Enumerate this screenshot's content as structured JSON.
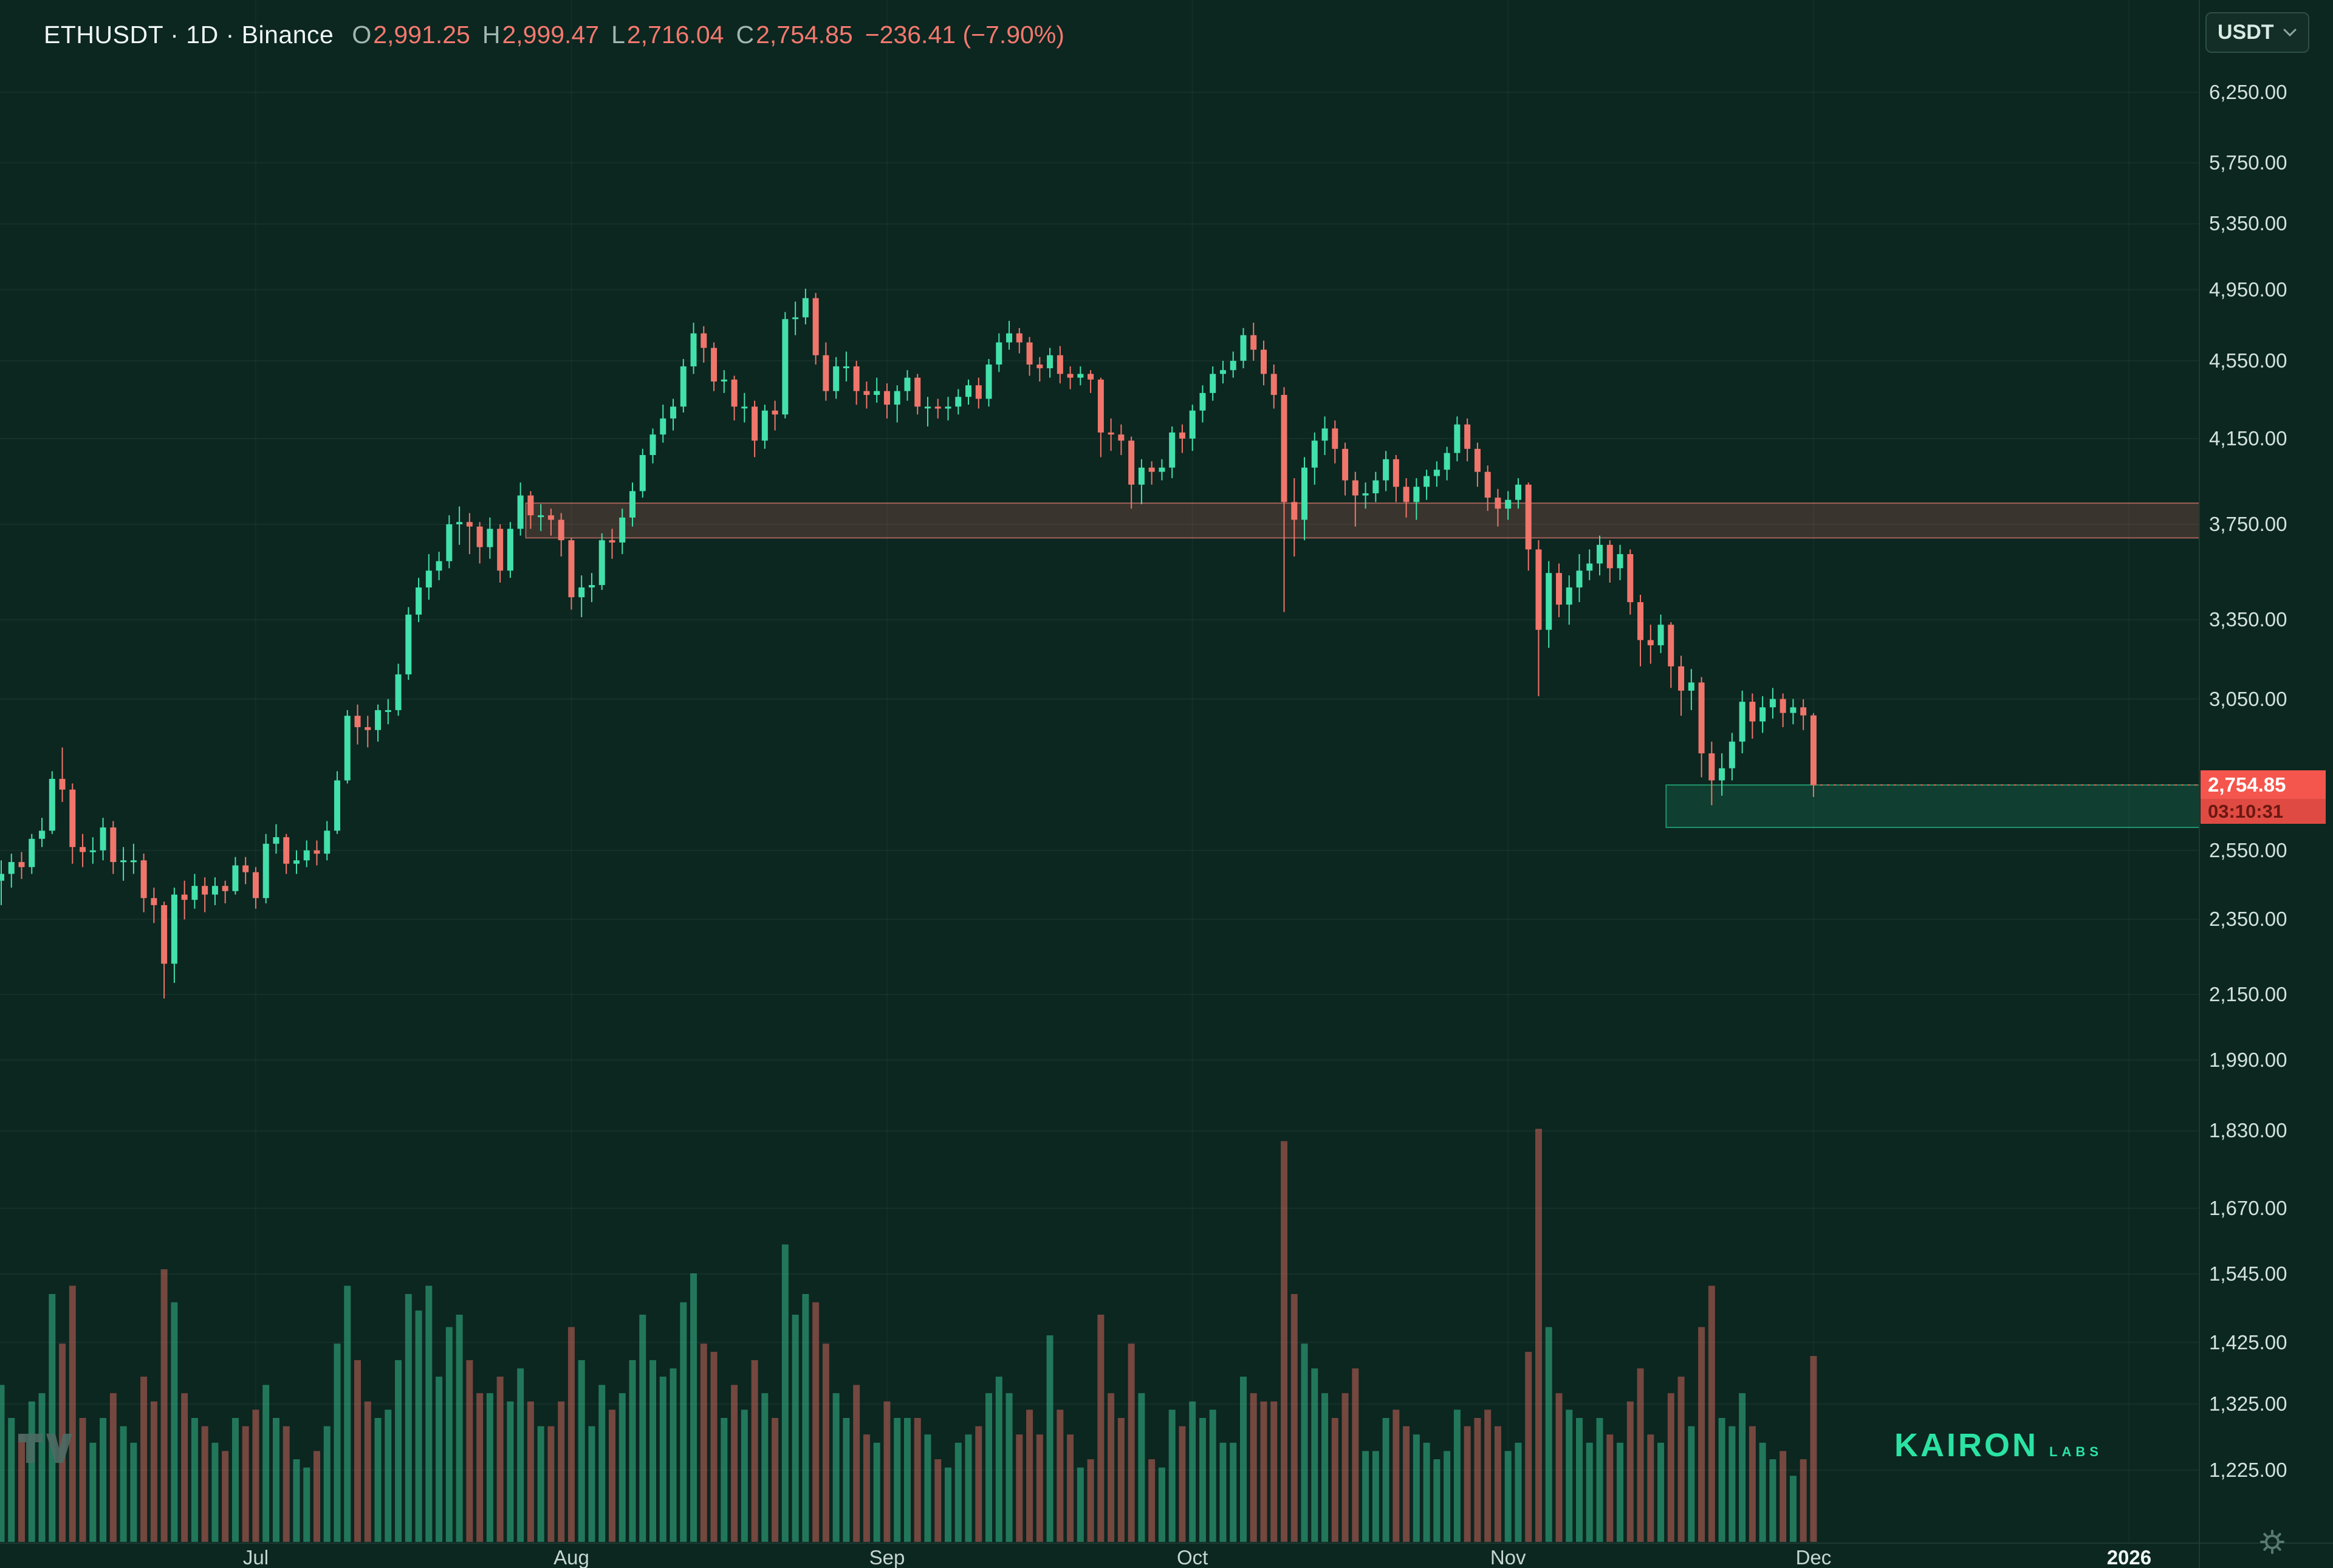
{
  "toolbar": {
    "symbol_text": "ETHUSDT · 1D · Binance",
    "ohlc": {
      "o_label": "O",
      "o": "2,991.25",
      "h_label": "H",
      "h": "2,999.47",
      "l_label": "L",
      "l": "2,716.04",
      "c_label": "C",
      "c": "2,754.85",
      "change": "−236.41 (−7.90%)"
    },
    "currency_button": "USDT"
  },
  "colors": {
    "background": "#0c2620",
    "up": "#42e0aa",
    "down": "#f0756b",
    "vol_up": "rgba(56,199,148,0.5)",
    "vol_down": "rgba(219,104,94,0.5)",
    "last_price_bg": "#f4564d",
    "brand_green": "#2be3a3",
    "axis_text": "#d3e2dc"
  },
  "price_axis": {
    "labels": [
      {
        "text": "6,250.00",
        "value": 6250
      },
      {
        "text": "5,750.00",
        "value": 5750
      },
      {
        "text": "5,350.00",
        "value": 5350
      },
      {
        "text": "4,950.00",
        "value": 4950
      },
      {
        "text": "4,550.00",
        "value": 4550
      },
      {
        "text": "4,150.00",
        "value": 4150
      },
      {
        "text": "3,750.00",
        "value": 3750
      },
      {
        "text": "3,350.00",
        "value": 3350
      },
      {
        "text": "3,050.00",
        "value": 3050
      },
      {
        "text": "2,550.00",
        "value": 2550
      },
      {
        "text": "2,350.00",
        "value": 2350
      },
      {
        "text": "2,150.00",
        "value": 2150
      },
      {
        "text": "1,990.00",
        "value": 1990
      },
      {
        "text": "1,830.00",
        "value": 1830
      },
      {
        "text": "1,670.00",
        "value": 1670
      },
      {
        "text": "1,545.00",
        "value": 1545
      },
      {
        "text": "1,425.00",
        "value": 1425
      },
      {
        "text": "1,325.00",
        "value": 1325
      },
      {
        "text": "1,225.00",
        "value": 1225
      }
    ],
    "last_price": {
      "text": "2,754.85",
      "countdown": "03:10:31",
      "value": 2754.85
    }
  },
  "time_axis": {
    "labels": [
      {
        "text": "Jul",
        "index": 25
      },
      {
        "text": "Aug",
        "index": 56
      },
      {
        "text": "Sep",
        "index": 87
      },
      {
        "text": "Oct",
        "index": 117
      },
      {
        "text": "Nov",
        "index": 148
      },
      {
        "text": "Dec",
        "index": 178
      },
      {
        "text": "2026",
        "index": 209,
        "strong": true
      }
    ]
  },
  "watermarks": {
    "brand_word": "KAIRON",
    "brand_suffix": "LABS"
  },
  "chart_data": {
    "type": "candlestick",
    "symbol": "ETHUSDT",
    "interval": "1D",
    "exchange": "Binance",
    "price_scale": "logarithmic",
    "y_axis_ticks": [
      6250,
      5750,
      5350,
      4950,
      4550,
      4150,
      3750,
      3350,
      3050,
      2550,
      2350,
      2150,
      1990,
      1830,
      1670,
      1545,
      1425,
      1325,
      1225
    ],
    "last_candle": {
      "open": 2991.25,
      "high": 2999.47,
      "low": 2716.04,
      "close": 2754.85,
      "change": -236.41,
      "change_pct": -7.9
    },
    "open_rule": "each candle open equals previous close",
    "first_open": 2460,
    "columns": [
      "high",
      "low",
      "close",
      "volume_rel"
    ],
    "month_start_indices": {
      "Jul": 25,
      "Aug": 56,
      "Sep": 87,
      "Oct": 117,
      "Nov": 148,
      "Dec": 178,
      "2026": 209
    },
    "candles": [
      [
        2520,
        2390,
        2480,
        0.38
      ],
      [
        2540,
        2440,
        2515,
        0.3
      ],
      [
        2545,
        2465,
        2500,
        0.26
      ],
      [
        2600,
        2480,
        2585,
        0.34
      ],
      [
        2650,
        2560,
        2610,
        0.36
      ],
      [
        2800,
        2600,
        2775,
        0.6
      ],
      [
        2880,
        2700,
        2740,
        0.48
      ],
      [
        2760,
        2510,
        2560,
        0.62
      ],
      [
        2600,
        2500,
        2545,
        0.3
      ],
      [
        2590,
        2510,
        2550,
        0.24
      ],
      [
        2650,
        2520,
        2620,
        0.3
      ],
      [
        2640,
        2480,
        2515,
        0.36
      ],
      [
        2560,
        2460,
        2520,
        0.28
      ],
      [
        2570,
        2480,
        2520,
        0.24
      ],
      [
        2540,
        2370,
        2410,
        0.4
      ],
      [
        2440,
        2340,
        2390,
        0.34
      ],
      [
        2400,
        2140,
        2230,
        0.66
      ],
      [
        2440,
        2180,
        2420,
        0.58
      ],
      [
        2460,
        2350,
        2405,
        0.36
      ],
      [
        2480,
        2380,
        2445,
        0.3
      ],
      [
        2470,
        2370,
        2420,
        0.28
      ],
      [
        2470,
        2390,
        2445,
        0.24
      ],
      [
        2460,
        2395,
        2430,
        0.22
      ],
      [
        2530,
        2420,
        2505,
        0.3
      ],
      [
        2530,
        2450,
        2485,
        0.28
      ],
      [
        2500,
        2380,
        2410,
        0.32
      ],
      [
        2600,
        2395,
        2570,
        0.38
      ],
      [
        2630,
        2540,
        2590,
        0.3
      ],
      [
        2600,
        2480,
        2510,
        0.28
      ],
      [
        2550,
        2480,
        2520,
        0.2
      ],
      [
        2580,
        2500,
        2550,
        0.18
      ],
      [
        2580,
        2505,
        2540,
        0.22
      ],
      [
        2640,
        2520,
        2610,
        0.28
      ],
      [
        2800,
        2600,
        2770,
        0.48
      ],
      [
        3010,
        2760,
        2990,
        0.62
      ],
      [
        3030,
        2890,
        2950,
        0.44
      ],
      [
        2990,
        2880,
        2940,
        0.34
      ],
      [
        3030,
        2900,
        3010,
        0.3
      ],
      [
        3050,
        2960,
        3010,
        0.32
      ],
      [
        3180,
        2990,
        3140,
        0.44
      ],
      [
        3400,
        3120,
        3370,
        0.6
      ],
      [
        3520,
        3340,
        3480,
        0.56
      ],
      [
        3620,
        3430,
        3550,
        0.62
      ],
      [
        3630,
        3510,
        3590,
        0.4
      ],
      [
        3790,
        3560,
        3750,
        0.52
      ],
      [
        3830,
        3660,
        3760,
        0.55
      ],
      [
        3800,
        3620,
        3740,
        0.44
      ],
      [
        3760,
        3580,
        3650,
        0.36
      ],
      [
        3780,
        3600,
        3730,
        0.36
      ],
      [
        3750,
        3500,
        3550,
        0.4
      ],
      [
        3760,
        3520,
        3730,
        0.34
      ],
      [
        3940,
        3700,
        3880,
        0.42
      ],
      [
        3900,
        3730,
        3790,
        0.34
      ],
      [
        3840,
        3720,
        3790,
        0.28
      ],
      [
        3820,
        3700,
        3770,
        0.28
      ],
      [
        3800,
        3610,
        3680,
        0.34
      ],
      [
        3690,
        3390,
        3440,
        0.52
      ],
      [
        3530,
        3360,
        3480,
        0.44
      ],
      [
        3540,
        3420,
        3490,
        0.28
      ],
      [
        3710,
        3470,
        3680,
        0.38
      ],
      [
        3730,
        3600,
        3670,
        0.32
      ],
      [
        3820,
        3620,
        3780,
        0.36
      ],
      [
        3940,
        3740,
        3900,
        0.44
      ],
      [
        4100,
        3870,
        4070,
        0.55
      ],
      [
        4200,
        4030,
        4170,
        0.44
      ],
      [
        4320,
        4130,
        4250,
        0.4
      ],
      [
        4350,
        4190,
        4310,
        0.42
      ],
      [
        4560,
        4280,
        4520,
        0.58
      ],
      [
        4760,
        4480,
        4700,
        0.65
      ],
      [
        4740,
        4540,
        4620,
        0.48
      ],
      [
        4650,
        4390,
        4440,
        0.46
      ],
      [
        4500,
        4380,
        4450,
        0.3
      ],
      [
        4470,
        4240,
        4310,
        0.38
      ],
      [
        4380,
        4230,
        4310,
        0.32
      ],
      [
        4340,
        4060,
        4140,
        0.44
      ],
      [
        4320,
        4100,
        4290,
        0.36
      ],
      [
        4340,
        4190,
        4270,
        0.3
      ],
      [
        4820,
        4250,
        4780,
        0.72
      ],
      [
        4880,
        4690,
        4790,
        0.55
      ],
      [
        4955,
        4750,
        4900,
        0.6
      ],
      [
        4930,
        4530,
        4580,
        0.58
      ],
      [
        4650,
        4340,
        4390,
        0.48
      ],
      [
        4570,
        4350,
        4520,
        0.36
      ],
      [
        4600,
        4440,
        4520,
        0.3
      ],
      [
        4550,
        4320,
        4390,
        0.38
      ],
      [
        4440,
        4300,
        4370,
        0.26
      ],
      [
        4460,
        4330,
        4390,
        0.24
      ],
      [
        4430,
        4250,
        4320,
        0.34
      ],
      [
        4420,
        4230,
        4390,
        0.3
      ],
      [
        4500,
        4340,
        4460,
        0.3
      ],
      [
        4480,
        4270,
        4310,
        0.3
      ],
      [
        4360,
        4210,
        4310,
        0.26
      ],
      [
        4350,
        4250,
        4300,
        0.2
      ],
      [
        4360,
        4240,
        4310,
        0.18
      ],
      [
        4400,
        4270,
        4360,
        0.24
      ],
      [
        4450,
        4320,
        4420,
        0.26
      ],
      [
        4460,
        4300,
        4350,
        0.28
      ],
      [
        4560,
        4310,
        4530,
        0.36
      ],
      [
        4700,
        4490,
        4650,
        0.4
      ],
      [
        4770,
        4610,
        4700,
        0.36
      ],
      [
        4730,
        4590,
        4650,
        0.26
      ],
      [
        4680,
        4470,
        4530,
        0.32
      ],
      [
        4570,
        4440,
        4510,
        0.26
      ],
      [
        4620,
        4460,
        4580,
        0.5
      ],
      [
        4630,
        4430,
        4480,
        0.32
      ],
      [
        4520,
        4400,
        4460,
        0.26
      ],
      [
        4520,
        4420,
        4480,
        0.18
      ],
      [
        4500,
        4380,
        4450,
        0.2
      ],
      [
        4460,
        4060,
        4180,
        0.55
      ],
      [
        4250,
        4090,
        4170,
        0.36
      ],
      [
        4220,
        4070,
        4140,
        0.3
      ],
      [
        4160,
        3820,
        3930,
        0.48
      ],
      [
        4050,
        3840,
        4010,
        0.36
      ],
      [
        4040,
        3930,
        3990,
        0.2
      ],
      [
        4050,
        3950,
        4010,
        0.18
      ],
      [
        4210,
        3960,
        4180,
        0.32
      ],
      [
        4220,
        4080,
        4150,
        0.28
      ],
      [
        4320,
        4090,
        4290,
        0.34
      ],
      [
        4420,
        4230,
        4380,
        0.3
      ],
      [
        4520,
        4340,
        4480,
        0.32
      ],
      [
        4550,
        4430,
        4500,
        0.24
      ],
      [
        4600,
        4460,
        4550,
        0.24
      ],
      [
        4730,
        4510,
        4690,
        0.4
      ],
      [
        4760,
        4550,
        4610,
        0.36
      ],
      [
        4660,
        4420,
        4480,
        0.34
      ],
      [
        4530,
        4300,
        4370,
        0.34
      ],
      [
        4410,
        3380,
        3850,
        0.97
      ],
      [
        3960,
        3610,
        3770,
        0.6
      ],
      [
        4060,
        3680,
        4010,
        0.48
      ],
      [
        4180,
        3930,
        4140,
        0.42
      ],
      [
        4260,
        4070,
        4200,
        0.36
      ],
      [
        4240,
        4030,
        4100,
        0.3
      ],
      [
        4130,
        3880,
        3950,
        0.36
      ],
      [
        3990,
        3740,
        3880,
        0.42
      ],
      [
        3940,
        3820,
        3890,
        0.22
      ],
      [
        3990,
        3850,
        3950,
        0.22
      ],
      [
        4090,
        3900,
        4050,
        0.3
      ],
      [
        4070,
        3850,
        3920,
        0.32
      ],
      [
        3960,
        3780,
        3850,
        0.28
      ],
      [
        3960,
        3770,
        3920,
        0.26
      ],
      [
        4000,
        3860,
        3970,
        0.24
      ],
      [
        4040,
        3920,
        4000,
        0.2
      ],
      [
        4110,
        3950,
        4080,
        0.22
      ],
      [
        4260,
        4040,
        4220,
        0.32
      ],
      [
        4250,
        4040,
        4100,
        0.28
      ],
      [
        4130,
        3920,
        3990,
        0.3
      ],
      [
        4020,
        3810,
        3870,
        0.32
      ],
      [
        3910,
        3740,
        3820,
        0.28
      ],
      [
        3900,
        3770,
        3860,
        0.22
      ],
      [
        3960,
        3820,
        3930,
        0.24
      ],
      [
        3940,
        3550,
        3640,
        0.46
      ],
      [
        3680,
        3060,
        3310,
        1.0
      ],
      [
        3590,
        3240,
        3540,
        0.52
      ],
      [
        3580,
        3360,
        3410,
        0.36
      ],
      [
        3530,
        3330,
        3480,
        0.32
      ],
      [
        3620,
        3420,
        3550,
        0.3
      ],
      [
        3640,
        3510,
        3580,
        0.24
      ],
      [
        3700,
        3530,
        3660,
        0.3
      ],
      [
        3680,
        3500,
        3560,
        0.26
      ],
      [
        3660,
        3510,
        3620,
        0.24
      ],
      [
        3640,
        3370,
        3420,
        0.34
      ],
      [
        3450,
        3170,
        3270,
        0.42
      ],
      [
        3330,
        3180,
        3250,
        0.26
      ],
      [
        3370,
        3220,
        3330,
        0.24
      ],
      [
        3340,
        3090,
        3170,
        0.36
      ],
      [
        3210,
        2990,
        3080,
        0.4
      ],
      [
        3160,
        3010,
        3110,
        0.28
      ],
      [
        3130,
        2780,
        2860,
        0.52
      ],
      [
        2900,
        2690,
        2770,
        0.62
      ],
      [
        2860,
        2720,
        2810,
        0.3
      ],
      [
        2930,
        2770,
        2900,
        0.28
      ],
      [
        3080,
        2860,
        3040,
        0.36
      ],
      [
        3070,
        2910,
        2970,
        0.28
      ],
      [
        3060,
        2930,
        3020,
        0.24
      ],
      [
        3090,
        2980,
        3050,
        0.2
      ],
      [
        3070,
        2950,
        3000,
        0.22
      ],
      [
        3050,
        2960,
        3020,
        0.16
      ],
      [
        3049,
        2940,
        2991.25,
        0.2
      ],
      [
        2999.47,
        2716.04,
        2754.85,
        0.45
      ]
    ],
    "zones": [
      {
        "kind": "resistance",
        "price_top": 3845,
        "price_bottom": 3690,
        "start_index": 52,
        "fill": "rgba(242,108,98,0.20)",
        "stroke": "rgba(246,132,122,0.60)",
        "end": "right-edge"
      },
      {
        "kind": "support",
        "price_top": 2755,
        "price_bottom": 2620,
        "start_index": 164,
        "fill": "rgba(43,227,163,0.13)",
        "stroke": "rgba(43,227,163,0.55)",
        "end": "right-edge"
      }
    ]
  }
}
